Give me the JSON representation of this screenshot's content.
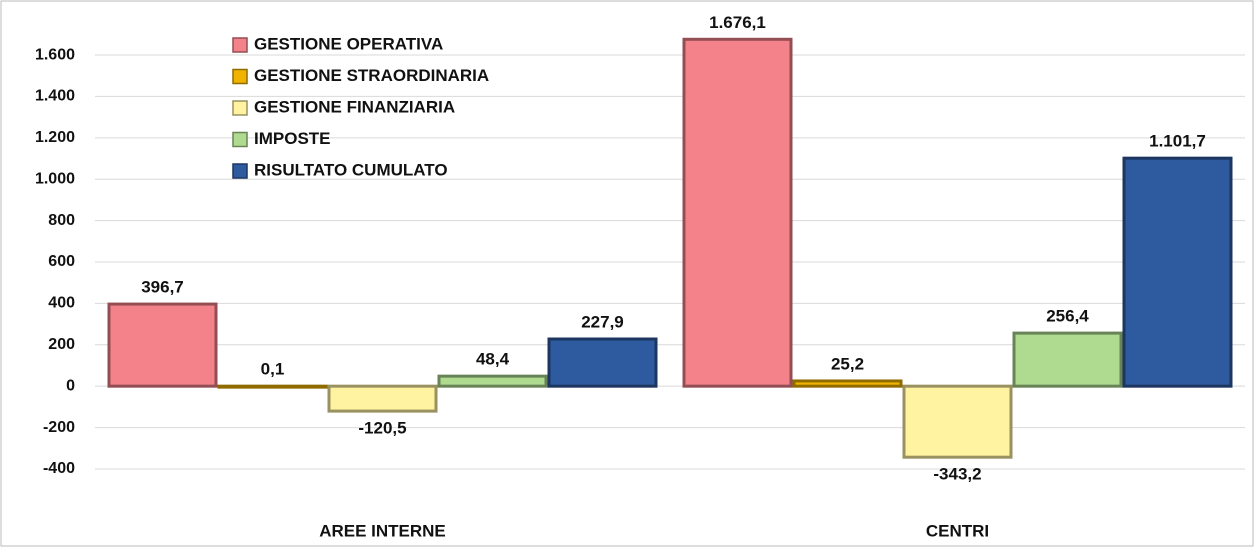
{
  "chart_data": {
    "type": "bar",
    "categories": [
      "AREE INTERNE",
      "CENTRI"
    ],
    "series": [
      {
        "name": "GESTIONE OPERATIVA",
        "color": "#f4828a",
        "values": [
          396.7,
          1676.1
        ],
        "value_labels": [
          "396,7",
          "1.676,1"
        ]
      },
      {
        "name": "GESTIONE STRAORDINARIA",
        "color": "#f0b400",
        "values": [
          0.1,
          25.2
        ],
        "value_labels": [
          "0,1",
          "25,2"
        ]
      },
      {
        "name": "GESTIONE FINANZIARIA",
        "color": "#fff2a0",
        "values": [
          -120.5,
          -343.2
        ],
        "value_labels": [
          "-120,5",
          "-343,2"
        ]
      },
      {
        "name": "IMPOSTE",
        "color": "#aedb8f",
        "values": [
          48.4,
          256.4
        ],
        "value_labels": [
          "48,4",
          "256,4"
        ]
      },
      {
        "name": "RISULTATO CUMULATO",
        "color": "#2e5aa0",
        "values": [
          227.9,
          1101.7
        ],
        "value_labels": [
          "227,9",
          "1.101,7"
        ]
      }
    ],
    "ylim": [
      -550,
      1750
    ],
    "yticks": [
      -400,
      -200,
      0,
      200,
      400,
      600,
      800,
      {
        "value": 1000,
        "label": "1.000"
      },
      {
        "value": 1200,
        "label": "1.200"
      },
      {
        "value": 1400,
        "label": "1.400"
      },
      {
        "value": 1600,
        "label": "1.600"
      }
    ],
    "grid": true,
    "legend": "top-left"
  }
}
